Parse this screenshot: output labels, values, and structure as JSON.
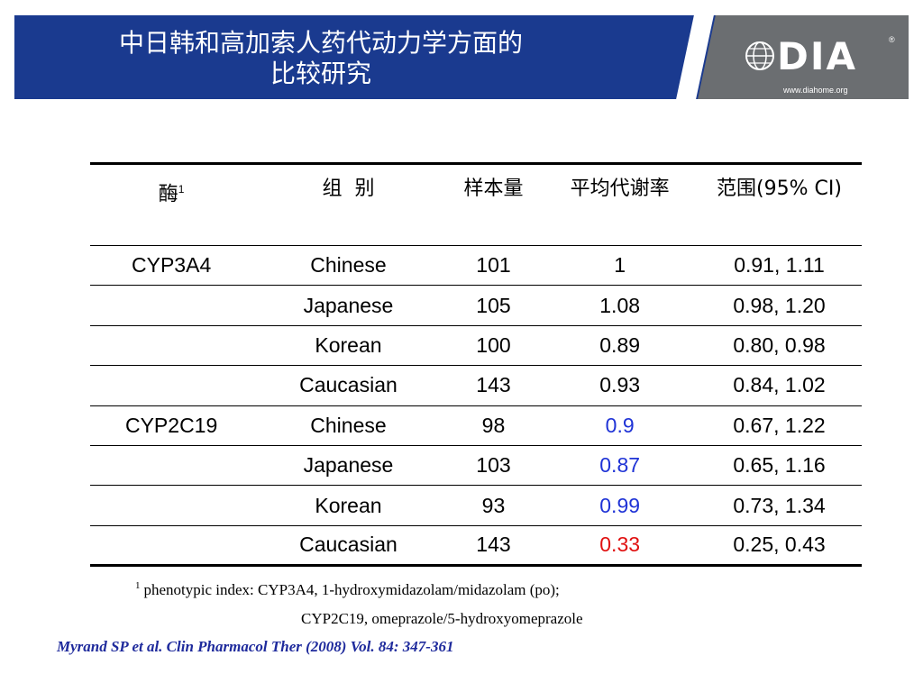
{
  "header": {
    "title_line1": "中日韩和高加索人药代动力学方面的",
    "title_line2": "比较研究",
    "logo": {
      "wordmark": "DIA",
      "registered": "®",
      "url": "www.diahome.org",
      "icon": "globe-icon"
    },
    "colors": {
      "banner": "#1a3a8f",
      "logo_panel": "#6b6e71"
    }
  },
  "table": {
    "headers": {
      "enzyme": "酶",
      "enzyme_sup": "1",
      "group": "组  别",
      "sample_size": "样本量",
      "mean_ratio": "平均代谢率",
      "range": "范围(95% CI)"
    },
    "rows": [
      {
        "enzyme": "CYP3A4",
        "group": "Chinese",
        "n": "101",
        "ratio": "1",
        "ci": "0.91, 1.11",
        "ratio_color": "black"
      },
      {
        "enzyme": "",
        "group": "Japanese",
        "n": "105",
        "ratio": "1.08",
        "ci": "0.98, 1.20",
        "ratio_color": "black"
      },
      {
        "enzyme": "",
        "group": "Korean",
        "n": "100",
        "ratio": "0.89",
        "ci": "0.80, 0.98",
        "ratio_color": "black"
      },
      {
        "enzyme": "",
        "group": "Caucasian",
        "n": "143",
        "ratio": "0.93",
        "ci": "0.84, 1.02",
        "ratio_color": "black"
      },
      {
        "enzyme": "CYP2C19",
        "group": "Chinese",
        "n": "98",
        "ratio": "0.9",
        "ci": "0.67, 1.22",
        "ratio_color": "#1f33d6"
      },
      {
        "enzyme": "",
        "group": "Japanese",
        "n": "103",
        "ratio": "0.87",
        "ci": "0.65, 1.16",
        "ratio_color": "#1f33d6"
      },
      {
        "enzyme": "",
        "group": "Korean",
        "n": "93",
        "ratio": "0.99",
        "ci": "0.73, 1.34",
        "ratio_color": "#1f33d6"
      },
      {
        "enzyme": "",
        "group": "Caucasian",
        "n": "143",
        "ratio": "0.33",
        "ci": "0.25, 0.43",
        "ratio_color": "#e01010"
      }
    ]
  },
  "footnote": {
    "marker": "1",
    "line1": "phenotypic index: CYP3A4, 1-hydroxymidazolam/midazolam (po);",
    "line2": "CYP2C19, omeprazole/5-hydroxyomeprazole"
  },
  "citation": "Myrand SP et al. Clin Pharmacol Ther (2008) Vol. 84: 347-361"
}
